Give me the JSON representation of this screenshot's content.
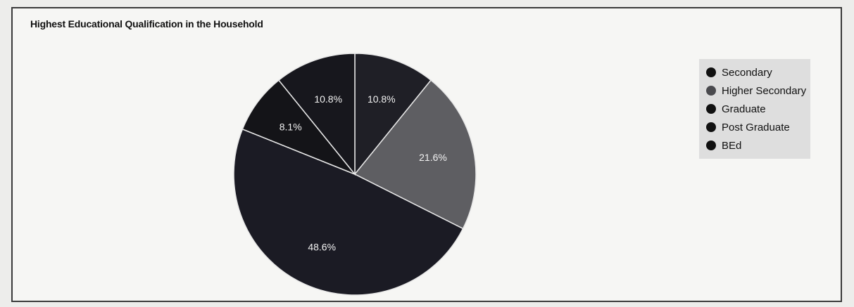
{
  "chart_data": {
    "type": "pie",
    "title": "Highest Educational Qualification in the Household",
    "slices": [
      {
        "label": "Secondary",
        "value": 48.6,
        "display": "48.6%",
        "color": "#1b1b24"
      },
      {
        "label": "Higher Secondary",
        "value": 21.6,
        "display": "21.6%",
        "color": "#5e5e62"
      },
      {
        "label": "Graduate",
        "value": 10.8,
        "display": "10.8%",
        "color": "#17171d"
      },
      {
        "label": "Post Graduate",
        "value": 10.8,
        "display": "10.8%",
        "color": "#1f1f26"
      },
      {
        "label": "BEd",
        "value": 8.1,
        "display": "8.1%",
        "color": "#141418"
      }
    ],
    "legend_position": "right",
    "grid": false
  }
}
